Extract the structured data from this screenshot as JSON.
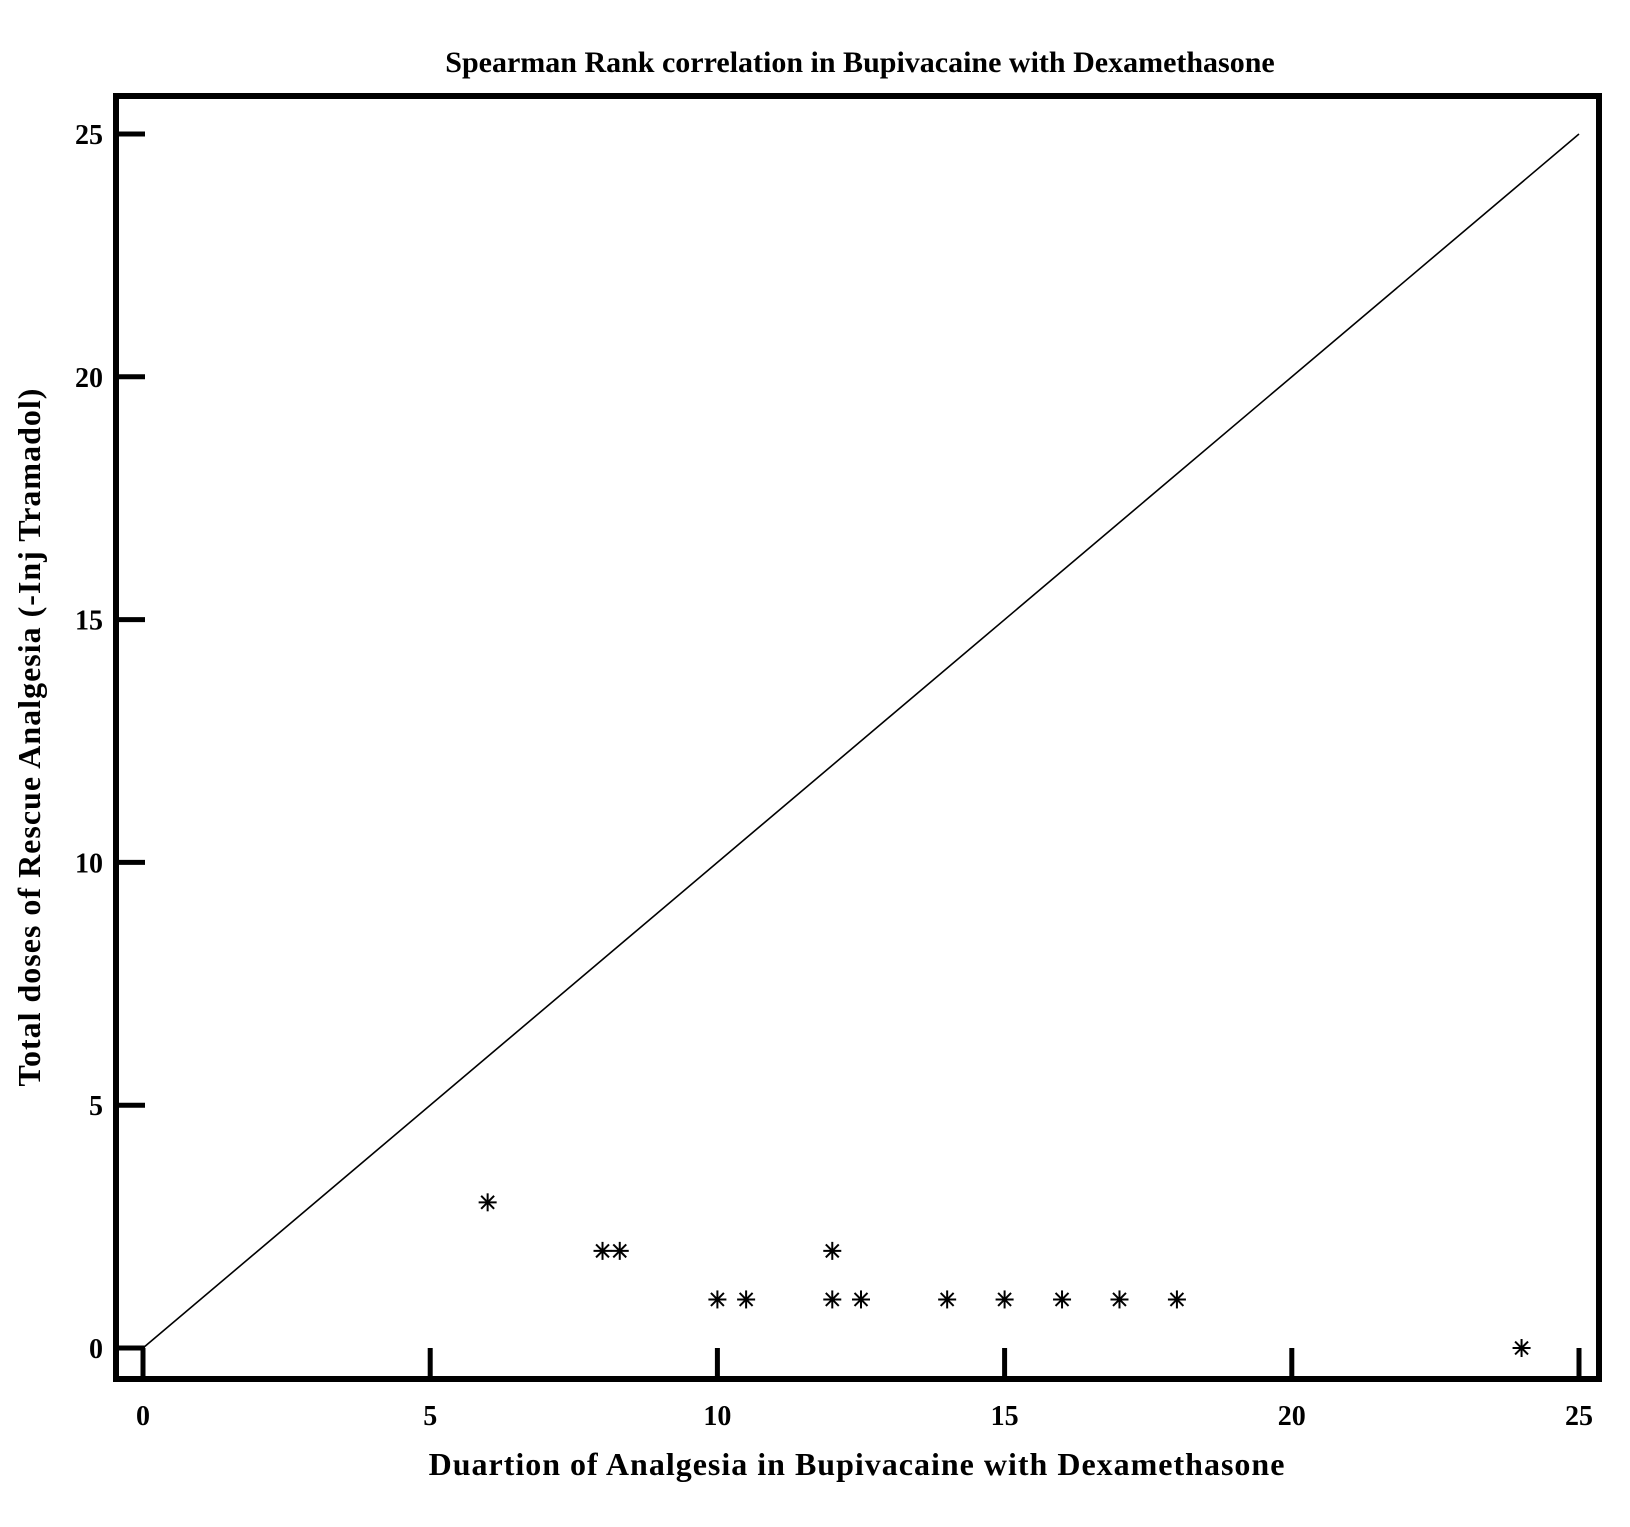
{
  "chart_data": {
    "type": "scatter",
    "title": "Spearman Rank correlation in Bupivacaine with Dexamethasone",
    "xlabel": "Duartion of Analgesia in Bupivacaine with Dexamethasone",
    "ylabel": "Total doses of Rescue Analgesia (-Inj Tramadol)",
    "xlim": [
      0,
      25
    ],
    "ylim": [
      0,
      25
    ],
    "xticks": [
      0,
      5,
      10,
      15,
      20,
      25
    ],
    "yticks": [
      0,
      5,
      10,
      15,
      20,
      25
    ],
    "grid": false,
    "marker": "asterisk",
    "reference_line": {
      "x": [
        0,
        25
      ],
      "y": [
        0,
        25
      ]
    },
    "points": [
      {
        "x": 6,
        "y": 3
      },
      {
        "x": 8,
        "y": 2
      },
      {
        "x": 8.3,
        "y": 2
      },
      {
        "x": 12,
        "y": 2
      },
      {
        "x": 10,
        "y": 1
      },
      {
        "x": 10.5,
        "y": 1
      },
      {
        "x": 12,
        "y": 1
      },
      {
        "x": 12.5,
        "y": 1
      },
      {
        "x": 14,
        "y": 1
      },
      {
        "x": 15,
        "y": 1
      },
      {
        "x": 16,
        "y": 1
      },
      {
        "x": 17,
        "y": 1
      },
      {
        "x": 18,
        "y": 1
      },
      {
        "x": 24,
        "y": 0
      }
    ]
  }
}
